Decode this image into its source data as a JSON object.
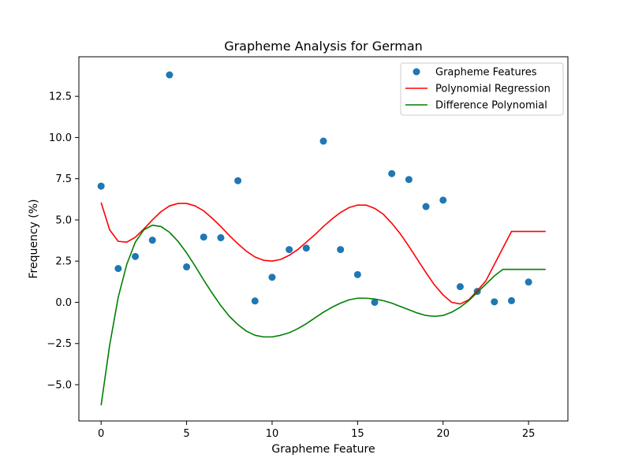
{
  "chart_data": {
    "type": "scatter",
    "title": "Grapheme Analysis for German",
    "xlabel": "Grapheme Feature",
    "ylabel": "Frequency (%)",
    "xlim": [
      -1.3,
      27.3
    ],
    "ylim": [
      -7.2,
      14.9
    ],
    "x_ticks": [
      0,
      5,
      10,
      15,
      20,
      25
    ],
    "y_ticks": [
      -5.0,
      -2.5,
      0.0,
      2.5,
      5.0,
      7.5,
      10.0,
      12.5
    ],
    "x_tick_labels": [
      "0",
      "5",
      "10",
      "15",
      "20",
      "25"
    ],
    "y_tick_labels": [
      "−5.0",
      "−2.5",
      "0.0",
      "2.5",
      "5.0",
      "7.5",
      "10.0",
      "12.5"
    ],
    "grid": false,
    "legend_position": "top-right",
    "series": [
      {
        "name": "Grapheme Features",
        "kind": "scatter",
        "color": "#1f77b4",
        "x": [
          0,
          1,
          2,
          3,
          4,
          5,
          6,
          7,
          8,
          9,
          10,
          11,
          12,
          13,
          14,
          15,
          16,
          17,
          18,
          19,
          20,
          21,
          22,
          23,
          24,
          25
        ],
        "y": [
          7.05,
          2.05,
          2.78,
          3.77,
          13.8,
          2.15,
          3.96,
          3.92,
          7.38,
          0.08,
          1.52,
          3.2,
          3.29,
          9.78,
          3.2,
          1.68,
          0.0,
          7.81,
          7.45,
          5.81,
          6.2,
          0.95,
          0.66,
          0.03,
          0.1,
          1.23
        ]
      },
      {
        "name": "Polynomial Regression",
        "kind": "line",
        "color": "#ff0000",
        "x": [
          0,
          0.5,
          1,
          1.5,
          2,
          2.5,
          3,
          3.5,
          4,
          4.5,
          5,
          5.5,
          6,
          6.5,
          7,
          7.5,
          8,
          8.5,
          9,
          9.5,
          10,
          10.5,
          11,
          11.5,
          12,
          12.5,
          13,
          13.5,
          14,
          14.5,
          15,
          15.5,
          16,
          16.5,
          17,
          17.5,
          18,
          18.5,
          19,
          19.5,
          20,
          20.5,
          21,
          21.5,
          22,
          22.5,
          23,
          23.5,
          24,
          24.5,
          25,
          25.5,
          26
        ],
        "y": [
          6.05,
          4.4,
          3.7,
          3.65,
          3.95,
          4.45,
          5.0,
          5.5,
          5.85,
          6.0,
          6.0,
          5.85,
          5.55,
          5.1,
          4.6,
          4.05,
          3.55,
          3.1,
          2.75,
          2.55,
          2.5,
          2.6,
          2.85,
          3.2,
          3.65,
          4.1,
          4.6,
          5.05,
          5.45,
          5.75,
          5.9,
          5.9,
          5.7,
          5.35,
          4.8,
          4.15,
          3.4,
          2.6,
          1.8,
          1.05,
          0.45,
          0.0,
          -0.1,
          0.15,
          0.7,
          1.3,
          2.3,
          3.3,
          4.3,
          4.3,
          4.3,
          4.3,
          4.3
        ]
      },
      {
        "name": "Difference Polynomial",
        "kind": "line",
        "color": "#008000",
        "x": [
          0,
          0.5,
          1,
          1.5,
          2,
          2.5,
          3,
          3.5,
          4,
          4.5,
          5,
          5.5,
          6,
          6.5,
          7,
          7.5,
          8,
          8.5,
          9,
          9.5,
          10,
          10.5,
          11,
          11.5,
          12,
          12.5,
          13,
          13.5,
          14,
          14.5,
          15,
          15.5,
          16,
          16.5,
          17,
          17.5,
          18,
          18.5,
          19,
          19.5,
          20,
          20.5,
          21,
          21.5,
          22,
          22.5,
          23,
          23.5,
          24,
          24.5,
          25,
          25.5,
          26
        ],
        "y": [
          -6.25,
          -2.6,
          0.3,
          2.3,
          3.65,
          4.4,
          4.68,
          4.6,
          4.25,
          3.7,
          3.0,
          2.2,
          1.35,
          0.55,
          -0.2,
          -0.85,
          -1.35,
          -1.75,
          -2.0,
          -2.1,
          -2.1,
          -2.0,
          -1.85,
          -1.6,
          -1.3,
          -0.95,
          -0.6,
          -0.3,
          -0.05,
          0.15,
          0.25,
          0.25,
          0.2,
          0.1,
          -0.05,
          -0.25,
          -0.45,
          -0.65,
          -0.8,
          -0.85,
          -0.8,
          -0.6,
          -0.3,
          0.1,
          0.6,
          1.1,
          1.6,
          2.0,
          2.0,
          2.0,
          2.0,
          2.0,
          2.0
        ]
      }
    ]
  }
}
